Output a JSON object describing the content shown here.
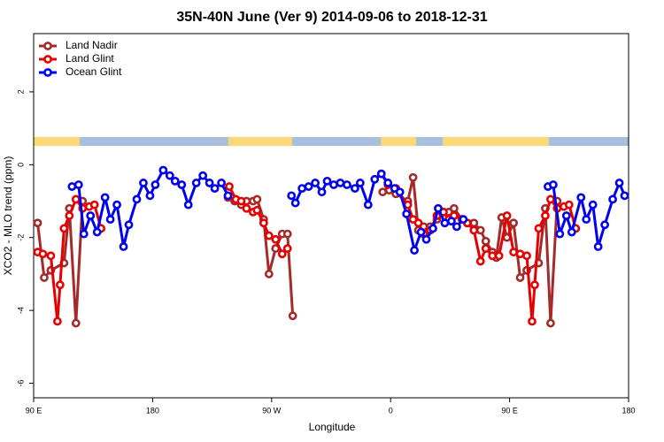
{
  "chart_data": {
    "type": "line",
    "title": "35N-40N June (Ver 9)   2014-09-06 to 2018-12-31",
    "xlabel": "Longitude",
    "ylabel": "XCO2 - MLO trend (ppm)",
    "xlim": [
      90,
      540
    ],
    "ylim": [
      -6.4,
      3.6
    ],
    "xticks": [
      {
        "value": 90,
        "label": "90 E"
      },
      180,
      {
        "value": 270,
        "label": "90 W"
      },
      {
        "value": 360,
        "label": "0"
      },
      {
        "value": 450,
        "label": "90 E"
      },
      {
        "value": 540,
        "label": "180"
      }
    ],
    "yticks": [
      -6,
      -4,
      -2,
      0,
      2
    ],
    "legend": "top-left",
    "series": [
      {
        "name": "Land Nadir",
        "color": "#a52a2a",
        "x": [
          93,
          98,
          103,
          113,
          117,
          122,
          127,
          null,
          237,
          242,
          247,
          251,
          256,
          259,
          264,
          268,
          273,
          278,
          282,
          286,
          null,
          354,
          359,
          364,
          373,
          377,
          381,
          385,
          390,
          395,
          400,
          404,
          408,
          414,
          418,
          423,
          428,
          432,
          437,
          440,
          444,
          448,
          453,
          458,
          463,
          472,
          477,
          481,
          486
        ],
        "values": [
          -1.6,
          -3.1,
          -2.9,
          -2.7,
          -1.2,
          -4.35,
          -1.0,
          null,
          -0.9,
          -1.0,
          -1.1,
          -1.0,
          -1.0,
          -0.95,
          -1.5,
          -3.0,
          -2.3,
          -1.9,
          -1.9,
          -4.15,
          null,
          -0.75,
          -0.7,
          -0.8,
          -1.0,
          -0.35,
          -1.8,
          -1.7,
          -1.7,
          -1.5,
          -1.3,
          -1.3,
          -1.2,
          -1.5,
          -1.6,
          -1.6,
          -1.8,
          -2.1,
          -2.4,
          -2.55,
          -1.45,
          -2.0,
          -1.6,
          -3.1,
          -2.9,
          -2.7,
          -1.2,
          -4.35,
          -1.0
        ]
      },
      {
        "name": "Land Glint",
        "color": "#e60000",
        "x": [
          93,
          97,
          103,
          108,
          110,
          113,
          117,
          122,
          127,
          132,
          136,
          141,
          null,
          238,
          243,
          247,
          251,
          256,
          259,
          264,
          268,
          273,
          278,
          282,
          null,
          353,
          358,
          364,
          373,
          377,
          381,
          385,
          390,
          395,
          400,
          404,
          408,
          414,
          418,
          423,
          428,
          432,
          437,
          442,
          448,
          453,
          458,
          463,
          467,
          469,
          472,
          477,
          481,
          486,
          491,
          495,
          500
        ],
        "values": [
          -2.4,
          -2.45,
          -2.5,
          -4.3,
          -3.3,
          -1.75,
          -1.4,
          -0.95,
          -1.2,
          -1.15,
          -1.1,
          -1.75,
          null,
          -0.6,
          -0.95,
          -1.0,
          -1.2,
          -1.3,
          -1.25,
          -1.6,
          -1.95,
          -2.05,
          -2.45,
          -2.3,
          null,
          -0.25,
          -0.55,
          -0.65,
          -1.1,
          -1.5,
          -1.6,
          -1.9,
          -1.8,
          -1.4,
          -1.3,
          -1.5,
          -1.4,
          -1.5,
          -1.6,
          -1.8,
          -2.65,
          -2.3,
          -2.5,
          -2.5,
          -1.4,
          -2.4,
          -2.45,
          -2.5,
          -4.3,
          -3.3,
          -1.75,
          -1.4,
          -0.95,
          -1.2,
          -1.15,
          -1.1,
          -1.75
        ]
      },
      {
        "name": "Ocean Glint",
        "color": "#0000ee",
        "x": [
          119,
          124,
          128,
          133,
          138,
          144,
          148,
          153,
          158,
          162,
          168,
          173,
          178,
          182,
          188,
          193,
          197,
          202,
          207,
          213,
          218,
          223,
          227,
          232,
          237,
          null,
          285,
          288,
          293,
          298,
          303,
          308,
          312,
          317,
          322,
          327,
          333,
          337,
          343,
          348,
          353,
          358,
          363,
          367,
          372,
          378,
          383,
          387,
          392,
          396,
          401,
          406,
          410,
          415,
          null,
          479,
          483,
          488,
          493,
          497,
          504,
          508,
          513,
          517,
          522,
          528,
          533,
          537
        ],
        "values": [
          -0.6,
          -0.55,
          -1.9,
          -1.4,
          -1.85,
          -0.9,
          -1.5,
          -1.1,
          -2.25,
          -1.65,
          -0.95,
          -0.5,
          -0.85,
          -0.55,
          -0.15,
          -0.3,
          -0.45,
          -0.55,
          -1.1,
          -0.5,
          -0.3,
          -0.5,
          -0.65,
          -0.5,
          -0.85,
          null,
          -0.85,
          -1.05,
          -0.65,
          -0.6,
          -0.5,
          -0.75,
          -0.45,
          -0.55,
          -0.5,
          -0.55,
          -0.65,
          -0.5,
          -1.1,
          -0.4,
          -0.25,
          -0.5,
          -0.65,
          -0.75,
          -1.35,
          -2.35,
          -1.85,
          -2.05,
          -1.75,
          -1.2,
          -1.6,
          -1.55,
          -1.7,
          -1.5,
          null,
          -0.6,
          -0.55,
          -1.9,
          -1.4,
          -1.85,
          -0.9,
          -1.5,
          -1.1,
          -2.25,
          -1.65,
          -0.95,
          -0.5,
          -0.85
        ]
      }
    ]
  }
}
